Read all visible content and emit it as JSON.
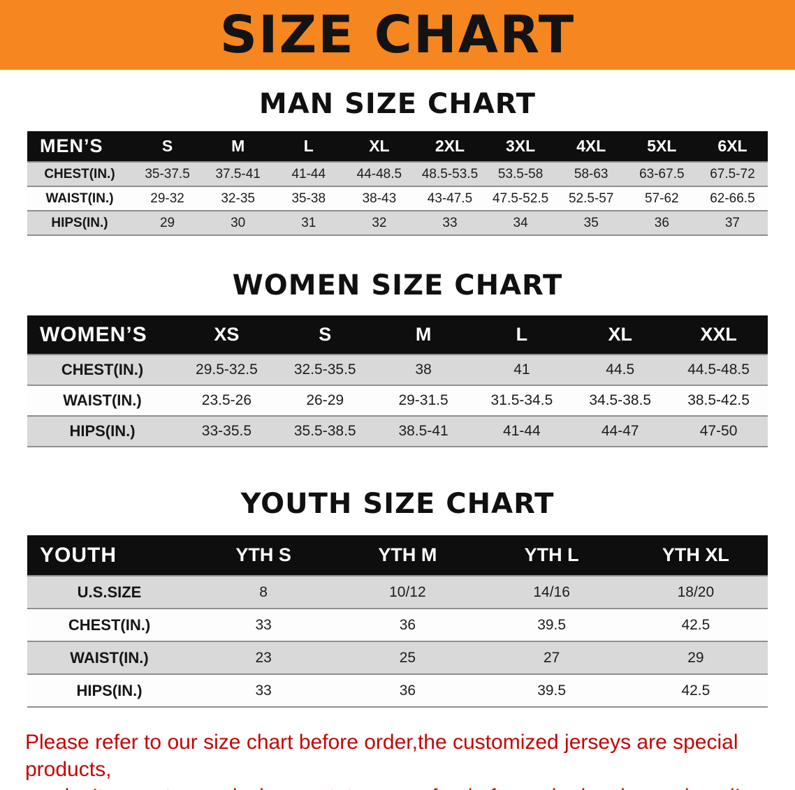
{
  "banner": {
    "title": "SIZE CHART"
  },
  "colors": {
    "banner_bg": "#f6861f",
    "header_bg": "#0e0e0e",
    "row_alt_bg": "#d9d9d9",
    "disclaimer_text": "#c40505"
  },
  "sections": [
    {
      "id": "mens",
      "heading": "MAN SIZE CHART",
      "table": {
        "corner": "MEN’S",
        "sizes": [
          "S",
          "M",
          "L",
          "XL",
          "2XL",
          "3XL",
          "4XL",
          "5XL",
          "6XL"
        ],
        "rows": [
          {
            "label": "CHEST(IN.)",
            "values": [
              "35-37.5",
              "37.5-41",
              "41-44",
              "44-48.5",
              "48.5-53.5",
              "53.5-58",
              "58-63",
              "63-67.5",
              "67.5-72"
            ]
          },
          {
            "label": "WAIST(IN.)",
            "values": [
              "29-32",
              "32-35",
              "35-38",
              "38-43",
              "43-47.5",
              "47.5-52.5",
              "52.5-57",
              "57-62",
              "62-66.5"
            ]
          },
          {
            "label": "HIPS(IN.)",
            "values": [
              "29",
              "30",
              "31",
              "32",
              "33",
              "34",
              "35",
              "36",
              "37"
            ]
          }
        ]
      }
    },
    {
      "id": "womens",
      "heading": "WOMEN SIZE CHART",
      "table": {
        "corner": "WOMEN’S",
        "sizes": [
          "XS",
          "S",
          "M",
          "L",
          "XL",
          "XXL"
        ],
        "rows": [
          {
            "label": "CHEST(IN.)",
            "values": [
              "29.5-32.5",
              "32.5-35.5",
              "38",
              "41",
              "44.5",
              "44.5-48.5"
            ]
          },
          {
            "label": "WAIST(IN.)",
            "values": [
              "23.5-26",
              "26-29",
              "29-31.5",
              "31.5-34.5",
              "34.5-38.5",
              "38.5-42.5"
            ]
          },
          {
            "label": "HIPS(IN.)",
            "values": [
              "33-35.5",
              "35.5-38.5",
              "38.5-41",
              "41-44",
              "44-47",
              "47-50"
            ]
          }
        ]
      }
    },
    {
      "id": "youth",
      "heading": "YOUTH SIZE CHART",
      "table": {
        "corner": "YOUTH",
        "sizes": [
          "YTH S",
          "YTH M",
          "YTH L",
          "YTH XL"
        ],
        "rows": [
          {
            "label": "U.S.SIZE",
            "values": [
              "8",
              "10/12",
              "14/16",
              "18/20"
            ]
          },
          {
            "label": "CHEST(IN.)",
            "values": [
              "33",
              "36",
              "39.5",
              "42.5"
            ]
          },
          {
            "label": "WAIST(IN.)",
            "values": [
              "23",
              "25",
              "27",
              "29"
            ]
          },
          {
            "label": "HIPS(IN.)",
            "values": [
              "33",
              "36",
              "39.5",
              "42.5"
            ]
          }
        ]
      }
    }
  ],
  "disclaimer": {
    "line1": "Please refer to our size chart before order,the customized jerseys are special products,",
    "line2": "we don’t accept cancel, change, teturn or refund after order has been placed!"
  }
}
